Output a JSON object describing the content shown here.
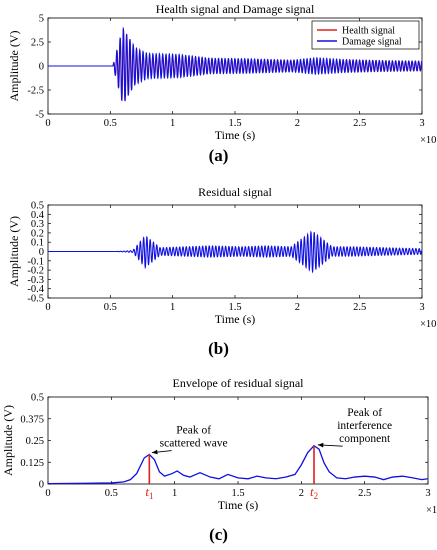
{
  "panels": [
    {
      "label": "(a)",
      "chart_data": {
        "type": "line",
        "title": "Health signal and Damage signal",
        "xlabel": "Time (s)",
        "ylabel": "Amplitude (V)",
        "xlim": [
          0,
          3
        ],
        "ylim": [
          -5,
          5
        ],
        "xticks": [
          "0",
          "0.5",
          "1",
          "1.5",
          "2",
          "2.5",
          "3"
        ],
        "yticks": [
          "5",
          "2.5",
          "0",
          "-2.5",
          "-5"
        ],
        "x_multiplier": "×10⁻⁴",
        "grid": false,
        "legend_position": "top-right",
        "series": [
          {
            "name": "Health signal",
            "color": "#e0201b",
            "start": 0.52,
            "frequency": 38,
            "envelope": [
              [
                0.52,
                0
              ],
              [
                0.6,
                3.9
              ],
              [
                0.7,
                1.8
              ],
              [
                0.8,
                0.9
              ],
              [
                1.05,
                1.05
              ],
              [
                1.3,
                0.75
              ],
              [
                1.6,
                0.7
              ],
              [
                1.95,
                0.6
              ],
              [
                2.2,
                0.3
              ],
              [
                2.4,
                0.65
              ],
              [
                2.7,
                0.55
              ],
              [
                3.0,
                0.5
              ]
            ]
          },
          {
            "name": "Damage signal",
            "color": "#1010e0",
            "start": 0.52,
            "frequency": 38,
            "envelope": [
              [
                0.52,
                0
              ],
              [
                0.6,
                4.0
              ],
              [
                0.7,
                1.9
              ],
              [
                0.8,
                1.3
              ],
              [
                1.05,
                1.2
              ],
              [
                1.3,
                0.8
              ],
              [
                1.6,
                0.75
              ],
              [
                1.95,
                0.6
              ],
              [
                2.15,
                0.85
              ],
              [
                2.4,
                0.65
              ],
              [
                2.7,
                0.55
              ],
              [
                3.0,
                0.5
              ]
            ]
          }
        ]
      }
    },
    {
      "label": "(b)",
      "chart_data": {
        "type": "line",
        "title": "Residual signal",
        "xlabel": "Time (s)",
        "ylabel": "Amplitude (V)",
        "xlim": [
          0,
          3
        ],
        "ylim": [
          -0.5,
          0.5
        ],
        "xticks": [
          "0",
          "0.5",
          "1",
          "1.5",
          "2",
          "2.5",
          "3"
        ],
        "yticks": [
          "0.5",
          "0.4",
          "0.3",
          "0.2",
          "0.1",
          "0",
          "-0.1",
          "-0.2",
          "-0.3",
          "-0.4",
          "-0.5"
        ],
        "x_multiplier": "×10⁻⁴",
        "grid": false,
        "series": [
          {
            "color": "#1010e0",
            "start": 0.55,
            "frequency": 38,
            "envelope": [
              [
                0.55,
                0
              ],
              [
                0.68,
                0.01
              ],
              [
                0.78,
                0.17
              ],
              [
                0.9,
                0.04
              ],
              [
                1.1,
                0.05
              ],
              [
                1.3,
                0.06
              ],
              [
                1.55,
                0.05
              ],
              [
                1.75,
                0.06
              ],
              [
                1.95,
                0.05
              ],
              [
                2.12,
                0.22
              ],
              [
                2.28,
                0.05
              ],
              [
                2.45,
                0.05
              ],
              [
                2.7,
                0.04
              ],
              [
                3.0,
                0.03
              ]
            ]
          }
        ]
      }
    },
    {
      "label": "(c)",
      "chart_data": {
        "type": "line",
        "title": "Envelope of residual signal",
        "xlabel": "Time (s)",
        "ylabel": "Amplitude (V)",
        "xlim": [
          0,
          3
        ],
        "ylim": [
          0,
          0.5
        ],
        "xticks": [
          "0",
          "0.5",
          "1",
          "1.5",
          "2",
          "2.5",
          "3"
        ],
        "yticks": [
          "0.5",
          "0.375",
          "0.25",
          "0.125",
          "0"
        ],
        "x_multiplier": "×10⁻⁴",
        "grid": false,
        "series": [
          {
            "color": "#1010e0",
            "points": [
              [
                0,
                0.002
              ],
              [
                0.3,
                0.004
              ],
              [
                0.5,
                0.006
              ],
              [
                0.6,
                0.012
              ],
              [
                0.65,
                0.025
              ],
              [
                0.7,
                0.06
              ],
              [
                0.76,
                0.15
              ],
              [
                0.8,
                0.17
              ],
              [
                0.84,
                0.14
              ],
              [
                0.88,
                0.07
              ],
              [
                0.92,
                0.045
              ],
              [
                0.98,
                0.06
              ],
              [
                1.02,
                0.075
              ],
              [
                1.07,
                0.05
              ],
              [
                1.12,
                0.04
              ],
              [
                1.2,
                0.065
              ],
              [
                1.28,
                0.04
              ],
              [
                1.35,
                0.03
              ],
              [
                1.42,
                0.055
              ],
              [
                1.5,
                0.035
              ],
              [
                1.58,
                0.03
              ],
              [
                1.65,
                0.045
              ],
              [
                1.72,
                0.035
              ],
              [
                1.8,
                0.03
              ],
              [
                1.88,
                0.04
              ],
              [
                1.95,
                0.055
              ],
              [
                2.0,
                0.11
              ],
              [
                2.05,
                0.18
              ],
              [
                2.1,
                0.22
              ],
              [
                2.14,
                0.2
              ],
              [
                2.18,
                0.12
              ],
              [
                2.22,
                0.07
              ],
              [
                2.28,
                0.035
              ],
              [
                2.35,
                0.03
              ],
              [
                2.42,
                0.04
              ],
              [
                2.5,
                0.045
              ],
              [
                2.58,
                0.04
              ],
              [
                2.65,
                0.025
              ],
              [
                2.72,
                0.04
              ],
              [
                2.8,
                0.045
              ],
              [
                2.88,
                0.035
              ],
              [
                2.95,
                0.025
              ],
              [
                3.0,
                0.03
              ]
            ]
          }
        ],
        "markers": [
          {
            "x": 0.8,
            "y": 0.17,
            "symbol": "t",
            "subscript": "1",
            "color": "#e0201b"
          },
          {
            "x": 2.1,
            "y": 0.22,
            "symbol": "t",
            "subscript": "2",
            "color": "#e0201b"
          }
        ],
        "annotations": [
          {
            "lines": [
              "Peak of",
              "scattered wave"
            ],
            "text_x": 1.15,
            "text_y": 0.29,
            "arrow_to": [
              0.82,
              0.18
            ]
          },
          {
            "lines": [
              "Peak of",
              "interference",
              "component"
            ],
            "text_x": 2.5,
            "text_y": 0.39,
            "arrow_to": [
              2.13,
              0.225
            ]
          }
        ]
      }
    }
  ]
}
